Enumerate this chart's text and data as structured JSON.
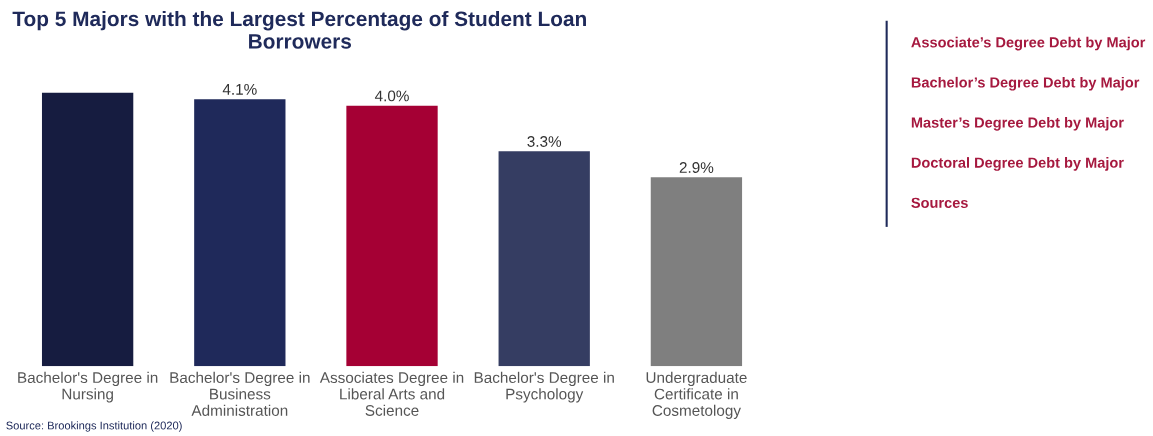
{
  "chart_data": [
    {
      "type": "bar",
      "title": "Top 5 Majors with the Largest Percentage of Student Loan Borrowers",
      "categories": [
        "Bachelor's Degree in Nursing",
        "Bachelor's Degree in Business Administration",
        "Associates Degree in Liberal Arts and Science",
        "Bachelor's Degree in Psychology",
        "Undergraduate Certificate in Cosmetology"
      ],
      "values": [
        4.2,
        4.1,
        4.0,
        3.3,
        2.9
      ],
      "value_labels": [
        null,
        "4.1%",
        "4.0%",
        "3.3%",
        "2.9%"
      ],
      "colors": [
        "#161c40",
        "#1f295a",
        "#a50034",
        "#353d62",
        "#7f7f7f"
      ],
      "annotations": [
        "Source: Brookings Institution (2020)"
      ]
    },
    {
      "type": "other",
      "annotations": [
        "Associate’s Degree Debt by Major",
        "Bachelor’s Degree Debt by Major",
        "Master’s Degree Debt by Major",
        "Doctoral Degree Debt by Major",
        "Sources"
      ]
    }
  ]
}
